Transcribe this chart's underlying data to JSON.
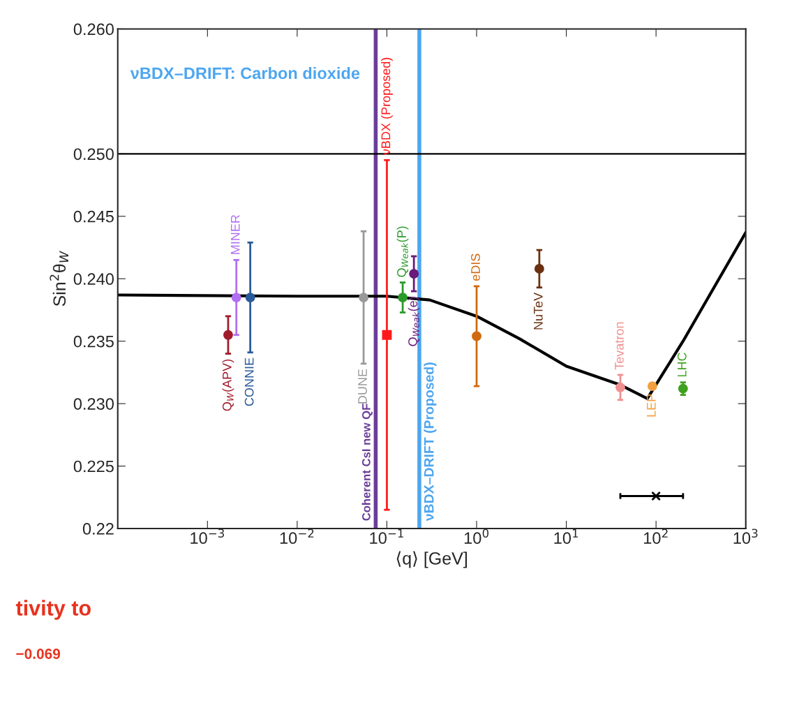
{
  "chart_data": {
    "type": "scatter",
    "xlabel": "⟨q⟩ [GeV]",
    "ylabel": "Sin$^{2}$θ$_{W}$",
    "log": "x",
    "xlim": [
      0.0001,
      1000
    ],
    "xticks": [
      {
        "value": 0.001,
        "label": "10$^{−3}$"
      },
      {
        "value": 0.01,
        "label": "10$^{−2}$"
      },
      {
        "value": 0.1,
        "label": "10$^{−1}$"
      },
      {
        "value": 1,
        "label": "10$^{0}$"
      },
      {
        "value": 10,
        "label": "10$^{1}$"
      },
      {
        "value": 100,
        "label": "10$^{2}$"
      },
      {
        "value": 1000,
        "label": "10$^{3}$"
      }
    ],
    "ylim": [
      0.22,
      0.26
    ],
    "yticks": [
      0.22,
      {
        "value": 0.225,
        "label": "0.225"
      },
      {
        "value": 0.23,
        "label": "0.230"
      },
      {
        "value": 0.235,
        "label": "0.235"
      },
      {
        "value": 0.24,
        "label": "0.240"
      },
      {
        "value": 0.245,
        "label": "0.245"
      },
      {
        "value": 0.25,
        "label": "0.250"
      },
      {
        "value": 0.26,
        "label": "0.260"
      }
    ],
    "grid": false,
    "marker": "circle",
    "series": [
      {
        "type": "line",
        "color": "#000000",
        "line_style": "solid",
        "marker": "none",
        "x": [
          0.0001,
          0.01,
          0.1,
          0.3,
          1,
          3,
          10,
          40,
          80,
          200,
          1000
        ],
        "values": [
          0.2387,
          0.2386,
          0.2386,
          0.2383,
          0.237,
          0.2352,
          0.233,
          0.2315,
          0.2304,
          0.235,
          0.2437
        ]
      },
      {
        "name": "Q$_{W}$(APV)",
        "color": "#a01c2c",
        "x": [
          0.0017
        ],
        "values": [
          0.2355
        ],
        "errors": [
          0.0015
        ]
      },
      {
        "name": "MINER",
        "color": "#b070f0",
        "x": [
          0.0021
        ],
        "values": [
          0.2385
        ],
        "errors": [
          0.003
        ]
      },
      {
        "name": "CONNIE",
        "color": "#2a5a9a",
        "x": [
          0.003
        ],
        "values": [
          0.2385
        ],
        "errors": [
          0.0044
        ]
      },
      {
        "name": "νBDX (Proposed)",
        "color": "#ff1a1a",
        "marker": "square",
        "x": [
          0.1
        ],
        "values": [
          0.2355
        ],
        "errors": [
          0.014
        ]
      },
      {
        "name": "DUNE",
        "color": "#999999",
        "x": [
          0.055
        ],
        "values": [
          0.2385
        ],
        "errors": [
          0.0053
        ]
      },
      {
        "name": "Q$_{Weak}$(P)",
        "color": "#2a9a2a",
        "x": [
          0.15
        ],
        "values": [
          0.2385
        ],
        "errors": [
          0.0012
        ]
      },
      {
        "name": "Q$_{Weak}$(e)",
        "color": "#6a1a7a",
        "x": [
          0.2
        ],
        "values": [
          0.2404
        ],
        "errors": [
          0.0014
        ]
      },
      {
        "name": "eDIS",
        "color": "#d06a10",
        "x": [
          1
        ],
        "values": [
          0.2354
        ],
        "errors": [
          0.004
        ]
      },
      {
        "name": "NuTeV",
        "color": "#6a3010",
        "x": [
          5
        ],
        "values": [
          0.2408
        ],
        "errors": [
          0.0015
        ]
      },
      {
        "name": "Tevatron",
        "color": "#f09090",
        "x": [
          40
        ],
        "values": [
          0.2313
        ],
        "errors": [
          0.001
        ]
      },
      {
        "name": "LEP",
        "color": "#f0a040",
        "x": [
          91
        ],
        "values": [
          0.2314
        ],
        "errors": [
          0.0002
        ]
      },
      {
        "name": "LHC",
        "color": "#40a020",
        "x": [
          200
        ],
        "values": [
          0.2312
        ],
        "errors": [
          0.0005
        ]
      },
      {
        "color": "#000000",
        "marker": "cross",
        "x": [
          100
        ],
        "values": [
          0.2226
        ],
        "xerrors": [
          [
            40,
            200
          ]
        ]
      }
    ],
    "ref_lines": [
      {
        "axis": "y",
        "value": 0.25,
        "color": "#000000"
      },
      {
        "axis": "x",
        "value": 0.075,
        "label": "Coherent CsI new QF",
        "color": "#6a3d9a"
      },
      {
        "axis": "x",
        "value": 0.23,
        "label": "νBDX–DRIFT (Proposed)",
        "color": "#4da6f0"
      }
    ],
    "annotations": [
      "νBDX–DRIFT: Carbon dioxide",
      "tivity to",
      "−0.069"
    ]
  }
}
